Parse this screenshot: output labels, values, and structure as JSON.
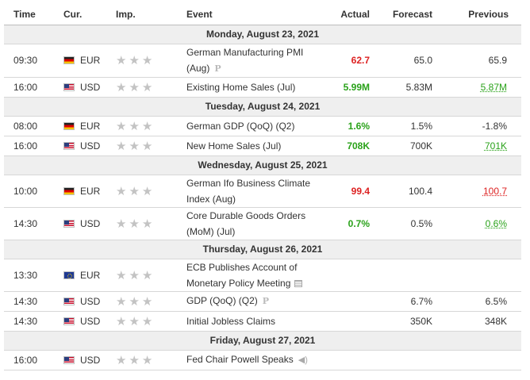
{
  "columns": {
    "time": "Time",
    "currency": "Cur.",
    "importance": "Imp.",
    "event": "Event",
    "actual": "Actual",
    "forecast": "Forecast",
    "previous": "Previous"
  },
  "colors": {
    "negative": "#dd2222",
    "positive": "#2aa21a",
    "star": "#c3c3c3",
    "day_header_bg": "#efefef"
  },
  "days": [
    {
      "date": "Monday, August 23, 2021",
      "events": [
        {
          "time": "09:30",
          "flag": "germany-flag-icon",
          "currency": "EUR",
          "importance": "★★★",
          "event_lines": [
            "German Manufacturing PMI",
            "(Aug)"
          ],
          "marker": "preliminary-icon",
          "actual": "62.7",
          "actual_color": "red",
          "forecast": "65.0",
          "previous": "65.9",
          "previous_style": ""
        },
        {
          "time": "16:00",
          "flag": "usa-flag-icon",
          "currency": "USD",
          "importance": "★★★",
          "event_lines": [
            "Existing Home Sales (Jul)"
          ],
          "marker": "",
          "actual": "5.99M",
          "actual_color": "green",
          "forecast": "5.83M",
          "previous": "5.87M",
          "previous_style": "u-green"
        }
      ]
    },
    {
      "date": "Tuesday, August 24, 2021",
      "events": [
        {
          "time": "08:00",
          "flag": "germany-flag-icon",
          "currency": "EUR",
          "importance": "★★★",
          "event_lines": [
            "German GDP (QoQ) (Q2)"
          ],
          "marker": "",
          "actual": "1.6%",
          "actual_color": "green",
          "forecast": "1.5%",
          "previous": "-1.8%",
          "previous_style": ""
        },
        {
          "time": "16:00",
          "flag": "usa-flag-icon",
          "currency": "USD",
          "importance": "★★★",
          "event_lines": [
            "New Home Sales (Jul)"
          ],
          "marker": "",
          "actual": "708K",
          "actual_color": "green",
          "forecast": "700K",
          "previous": "701K",
          "previous_style": "u-green"
        }
      ]
    },
    {
      "date": "Wednesday, August 25, 2021",
      "events": [
        {
          "time": "10:00",
          "flag": "germany-flag-icon",
          "currency": "EUR",
          "importance": "★★★",
          "event_lines": [
            "German Ifo Business Climate",
            "Index (Aug)"
          ],
          "marker": "",
          "actual": "99.4",
          "actual_color": "red",
          "forecast": "100.4",
          "previous": "100.7",
          "previous_style": "u-red"
        },
        {
          "time": "14:30",
          "flag": "usa-flag-icon",
          "currency": "USD",
          "importance": "★★★",
          "event_lines": [
            "Core Durable Goods Orders",
            "(MoM) (Jul)"
          ],
          "marker": "",
          "actual": "0.7%",
          "actual_color": "green",
          "forecast": "0.5%",
          "previous": "0.6%",
          "previous_style": "u-green"
        }
      ]
    },
    {
      "date": "Thursday, August 26, 2021",
      "events": [
        {
          "time": "13:30",
          "flag": "eu-flag-icon",
          "currency": "EUR",
          "importance": "★★★",
          "event_lines": [
            "ECB Publishes Account of",
            "Monetary Policy Meeting"
          ],
          "marker": "document-icon",
          "actual": "",
          "actual_color": "",
          "forecast": "",
          "previous": "",
          "previous_style": ""
        },
        {
          "time": "14:30",
          "flag": "usa-flag-icon",
          "currency": "USD",
          "importance": "★★★",
          "event_lines": [
            "GDP (QoQ) (Q2)"
          ],
          "marker": "preliminary-icon",
          "actual": "",
          "actual_color": "",
          "forecast": "6.7%",
          "previous": "6.5%",
          "previous_style": ""
        },
        {
          "time": "14:30",
          "flag": "usa-flag-icon",
          "currency": "USD",
          "importance": "★★★",
          "event_lines": [
            "Initial Jobless Claims"
          ],
          "marker": "",
          "actual": "",
          "actual_color": "",
          "forecast": "350K",
          "previous": "348K",
          "previous_style": ""
        }
      ]
    },
    {
      "date": "Friday, August 27, 2021",
      "events": [
        {
          "time": "16:00",
          "flag": "usa-flag-icon",
          "currency": "USD",
          "importance": "★★★",
          "event_lines": [
            "Fed Chair Powell Speaks"
          ],
          "marker": "speech-icon",
          "actual": "",
          "actual_color": "",
          "forecast": "",
          "previous": "",
          "previous_style": ""
        }
      ]
    }
  ],
  "marker_glyphs": {
    "preliminary-icon": "P"
  }
}
